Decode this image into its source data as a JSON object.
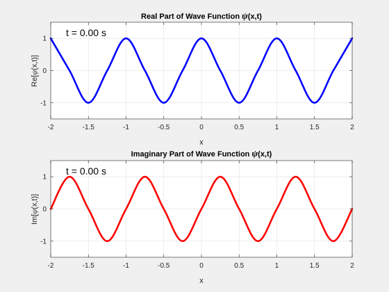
{
  "chart_data": [
    {
      "type": "line",
      "title_prefix": "Real Part of Wave Function ",
      "title_symbol": "ψ",
      "title_suffix": "(x,t)",
      "xlabel": "x",
      "ylabel_prefix": "Re[",
      "ylabel_symbol": "ψ",
      "ylabel_suffix": "(x,t)]",
      "annotation": "t = 0.00 s",
      "xlim": [
        -2,
        2
      ],
      "ylim": [
        -1.5,
        1.5
      ],
      "xticks": [
        -2,
        -1.5,
        -1,
        -0.5,
        0,
        0.5,
        1,
        1.5,
        2
      ],
      "xtick_labels": [
        "-2",
        "-1.5",
        "-1",
        "-0.5",
        "0",
        "0.5",
        "1",
        "1.5",
        "2"
      ],
      "yticks": [
        -1,
        0,
        1
      ],
      "ytick_labels": [
        "-1",
        "0",
        "1"
      ],
      "grid": true,
      "series": [
        {
          "color": "#0000ff",
          "x": [
            -2,
            -1.75,
            -1.5,
            -1.25,
            -1,
            -0.75,
            -0.5,
            -0.25,
            0,
            0.25,
            0.5,
            0.75,
            1,
            1.25,
            1.5,
            1.75,
            2
          ],
          "y": [
            1,
            0,
            -1,
            0,
            1,
            0,
            -1,
            0,
            1,
            0,
            -1,
            0,
            1,
            0,
            -1,
            0,
            1
          ]
        }
      ]
    },
    {
      "type": "line",
      "title_prefix": "Imaginary Part of Wave Function ",
      "title_symbol": "ψ",
      "title_suffix": "(x,t)",
      "xlabel": "x",
      "ylabel_prefix": "Im[",
      "ylabel_symbol": "ψ",
      "ylabel_suffix": "(x,t)]",
      "annotation": "t = 0.00 s",
      "xlim": [
        -2,
        2
      ],
      "ylim": [
        -1.5,
        1.5
      ],
      "xticks": [
        -2,
        -1.5,
        -1,
        -0.5,
        0,
        0.5,
        1,
        1.5,
        2
      ],
      "xtick_labels": [
        "-2",
        "-1.5",
        "-1",
        "-0.5",
        "0",
        "0.5",
        "1",
        "1.5",
        "2"
      ],
      "yticks": [
        -1,
        0,
        1
      ],
      "ytick_labels": [
        "-1",
        "0",
        "1"
      ],
      "grid": true,
      "series": [
        {
          "color": "#ff0000",
          "x": [
            -2,
            -1.75,
            -1.5,
            -1.25,
            -1,
            -0.75,
            -0.5,
            -0.25,
            0,
            0.25,
            0.5,
            0.75,
            1,
            1.25,
            1.5,
            1.75,
            2
          ],
          "y": [
            0,
            1,
            0,
            -1,
            0,
            1,
            0,
            -1,
            0,
            1,
            0,
            -1,
            0,
            1,
            0,
            -1,
            0
          ]
        }
      ]
    }
  ]
}
